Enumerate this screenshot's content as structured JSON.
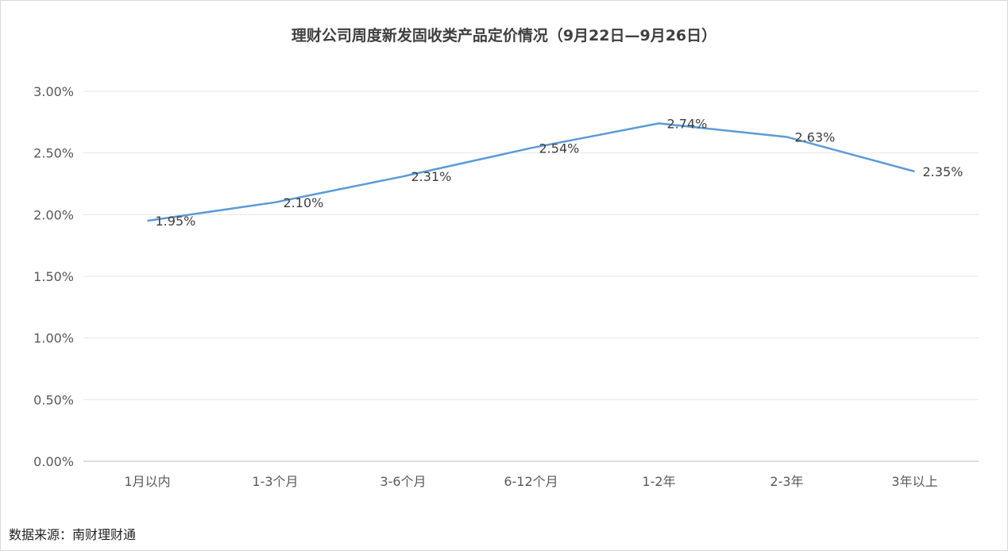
{
  "chart_data": {
    "type": "line",
    "title": "理财公司周度新发固收类产品定价情况（9月22日—9月26日）",
    "categories": [
      "1月以内",
      "1-3个月",
      "3-6个月",
      "6-12个月",
      "1-2年",
      "2-3年",
      "3年以上"
    ],
    "series": [
      {
        "values": [
          1.95,
          2.1,
          2.31,
          2.54,
          2.74,
          2.63,
          2.35
        ],
        "data_labels": [
          "1.95%",
          "2.10%",
          "2.31%",
          "2.54%",
          "2.74%",
          "2.63%",
          "2.35%"
        ],
        "color": "#5b9bd5"
      }
    ],
    "y_ticks": [
      "0.00%",
      "0.50%",
      "1.00%",
      "1.50%",
      "2.00%",
      "2.50%",
      "3.00%"
    ],
    "ylim": [
      0,
      3.0
    ],
    "grid": true,
    "legend": "none"
  },
  "source_note": "数据来源：南财理财通"
}
